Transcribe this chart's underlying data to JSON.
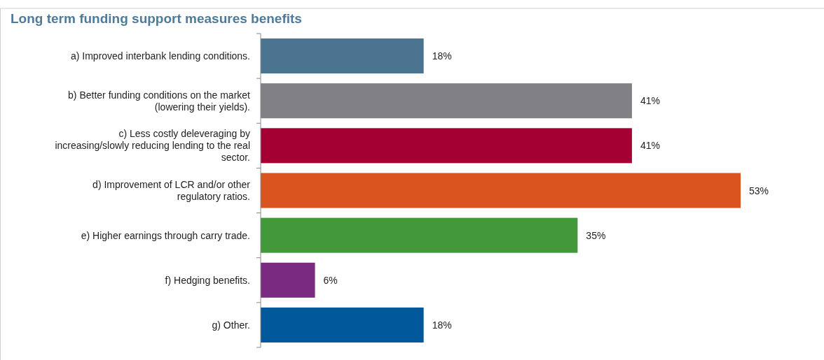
{
  "chart_data": {
    "type": "bar",
    "orientation": "horizontal",
    "title": "Long term funding support measures benefits",
    "categories": [
      "a) Improved interbank lending conditions.",
      "b) Better funding conditions on the market (lowering their yields).",
      "c) Less costly deleveraging by increasing/slowly reducing lending to the real sector.",
      "d) Improvement of LCR and/or other regulatory ratios.",
      "e) Higher earnings through carry trade.",
      "f) Hedging benefits.",
      "g) Other."
    ],
    "values": [
      18,
      41,
      41,
      53,
      35,
      6,
      18
    ],
    "colors": [
      "#4a7490",
      "#808085",
      "#a50034",
      "#d9541e",
      "#43983a",
      "#7b2a82",
      "#00579a"
    ],
    "value_labels": [
      "18%",
      "41%",
      "41%",
      "53%",
      "35%",
      "6%",
      "18%"
    ],
    "xlim": [
      0,
      53
    ]
  }
}
